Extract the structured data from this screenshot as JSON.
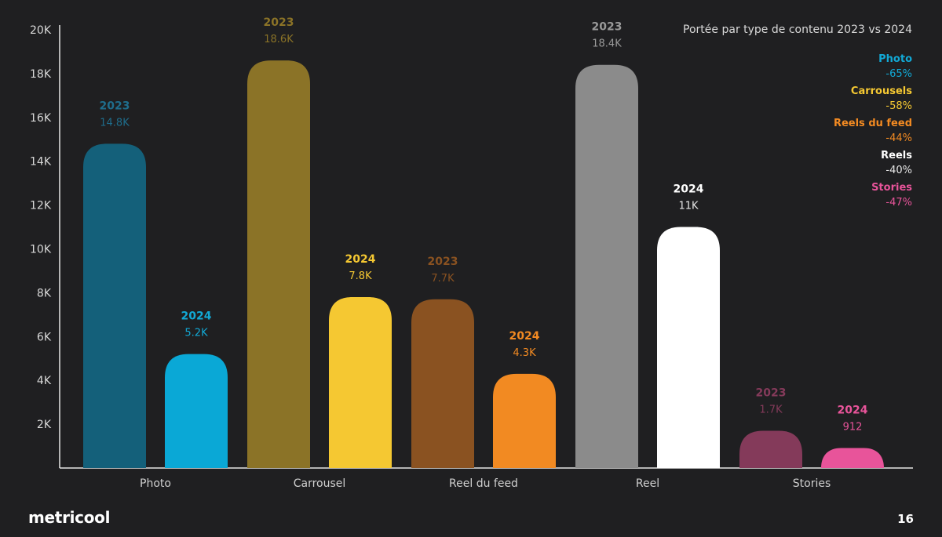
{
  "chart_data": {
    "type": "bar",
    "title": "Portée par type de contenu 2023 vs 2024",
    "categories": [
      "Photo",
      "Carrousel",
      "Reel du feed",
      "Reel",
      "Stories"
    ],
    "series": [
      {
        "name": "2023",
        "values": [
          14800,
          18600,
          7700,
          18400,
          1700
        ],
        "labels": [
          "14.8K",
          "18.6K",
          "7.7K",
          "18.4K",
          "1.7K"
        ],
        "colors": [
          "#14607a",
          "#8b7327",
          "#8a5221",
          "#8b8b8b",
          "#843a5a"
        ]
      },
      {
        "name": "2024",
        "values": [
          5200,
          7800,
          4300,
          11000,
          912
        ],
        "labels": [
          "5.2K",
          "7.8K",
          "4.3K",
          "11K",
          "912"
        ],
        "colors": [
          "#0aa8d6",
          "#f5c832",
          "#f28a22",
          "#ffffff",
          "#e8549a"
        ]
      }
    ],
    "yticks": [
      "2K",
      "4K",
      "6K",
      "8K",
      "10K",
      "12K",
      "14K",
      "16K",
      "18K",
      "20K"
    ],
    "ytick_values": [
      2000,
      4000,
      6000,
      8000,
      10000,
      12000,
      14000,
      16000,
      18000,
      20000
    ],
    "ylim": [
      0,
      20000
    ]
  },
  "label_colors": {
    "2023": [
      {
        "year": "#1f6d8c",
        "value": "#1f6d8c"
      },
      {
        "year": "#8b7327",
        "value": "#8b7327"
      },
      {
        "year": "#8a5221",
        "value": "#8a5221"
      },
      {
        "year": "#9a9a9a",
        "value": "#9a9a9a"
      },
      {
        "year": "#843a5a",
        "value": "#843a5a"
      }
    ],
    "2024": [
      {
        "year": "#12a9d6",
        "value": "#12a9d6"
      },
      {
        "year": "#f5c832",
        "value": "#f5c832"
      },
      {
        "year": "#f28a22",
        "value": "#f28a22"
      },
      {
        "year": "#ffffff",
        "value": "#e6e6e6"
      },
      {
        "year": "#e8549a",
        "value": "#e8549a"
      }
    ]
  },
  "legend": {
    "title": "Portée par type de contenu 2023 vs 2024",
    "items": [
      {
        "name": "Photo",
        "change": "-65%",
        "name_color": "#12a9d6",
        "change_color": "#12a9d6"
      },
      {
        "name": "Carrousels",
        "change": "-58%",
        "name_color": "#f5c832",
        "change_color": "#f5c832"
      },
      {
        "name": "Reels du feed",
        "change": "-44%",
        "name_color": "#f28a22",
        "change_color": "#f28a22"
      },
      {
        "name": "Reels",
        "change": "-40%",
        "name_color": "#ffffff",
        "change_color": "#e6e6e6"
      },
      {
        "name": "Stories",
        "change": "-47%",
        "name_color": "#e8549a",
        "change_color": "#e8549a"
      }
    ]
  },
  "footer": {
    "brand": "metricool",
    "page_number": "16"
  }
}
